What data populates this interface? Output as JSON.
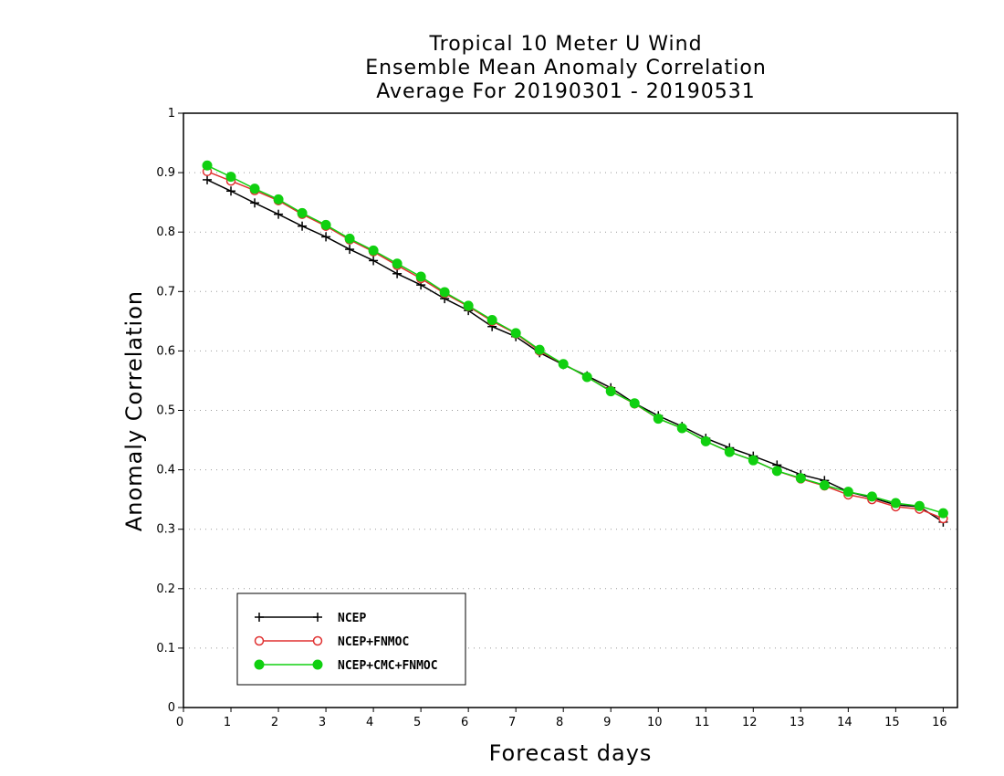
{
  "chart_data": {
    "type": "line",
    "title": [
      "Tropical 10 Meter U Wind",
      "Ensemble Mean Anomaly Correlation",
      "Average For 20190301 - 20190531"
    ],
    "xlabel": "Forecast days",
    "ylabel": "Anomaly Correlation",
    "xlim": [
      0,
      16.3
    ],
    "ylim": [
      0,
      1
    ],
    "x_ticks": [
      0,
      1,
      2,
      3,
      4,
      5,
      6,
      7,
      8,
      9,
      10,
      11,
      12,
      13,
      14,
      15,
      16
    ],
    "y_ticks": [
      0,
      0.1,
      0.2,
      0.3,
      0.4,
      0.5,
      0.6,
      0.7,
      0.8,
      0.9,
      1
    ],
    "grid": "horizontal dotted",
    "legend_position": "bottom-left",
    "x": [
      0.5,
      1,
      1.5,
      2,
      2.5,
      3,
      3.5,
      4,
      4.5,
      5,
      5.5,
      6,
      6.5,
      7,
      7.5,
      8,
      8.5,
      9,
      9.5,
      10,
      10.5,
      11,
      11.5,
      12,
      12.5,
      13,
      13.5,
      14,
      14.5,
      15,
      15.5,
      16
    ],
    "series": [
      {
        "name": "NCEP",
        "color": "#000000",
        "marker": "plus",
        "values": [
          0.888,
          0.869,
          0.849,
          0.83,
          0.81,
          0.792,
          0.771,
          0.752,
          0.73,
          0.711,
          0.688,
          0.668,
          0.641,
          0.624,
          0.597,
          0.577,
          0.558,
          0.538,
          0.512,
          0.491,
          0.473,
          0.453,
          0.437,
          0.423,
          0.408,
          0.392,
          0.382,
          0.363,
          0.353,
          0.341,
          0.338,
          0.312
        ]
      },
      {
        "name": "NCEP+FNMOC",
        "color": "#e03030",
        "marker": "open-circle",
        "values": [
          0.902,
          0.886,
          0.87,
          0.853,
          0.83,
          0.81,
          0.787,
          0.767,
          0.744,
          0.722,
          0.697,
          0.675,
          0.65,
          0.629,
          0.6,
          0.578,
          0.556,
          0.533,
          0.511,
          0.486,
          0.47,
          0.448,
          0.43,
          0.416,
          0.398,
          0.385,
          0.373,
          0.358,
          0.35,
          0.338,
          0.334,
          0.318
        ]
      },
      {
        "name": "NCEP+CMC+FNMOC",
        "color": "#10d010",
        "marker": "filled-circle",
        "values": [
          0.912,
          0.893,
          0.873,
          0.855,
          0.832,
          0.812,
          0.789,
          0.769,
          0.747,
          0.725,
          0.699,
          0.676,
          0.652,
          0.63,
          0.602,
          0.578,
          0.556,
          0.532,
          0.512,
          0.486,
          0.47,
          0.448,
          0.43,
          0.416,
          0.398,
          0.386,
          0.374,
          0.363,
          0.355,
          0.344,
          0.339,
          0.327
        ]
      }
    ]
  }
}
